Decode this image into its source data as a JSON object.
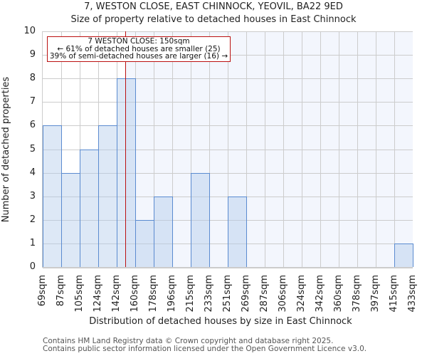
{
  "header": {
    "title": "7, WESTON CLOSE, EAST CHINNOCK, YEOVIL, BA22 9ED",
    "subtitle": "Size of property relative to detached houses in East Chinnock"
  },
  "annotation": {
    "line1": "7 WESTON CLOSE: 150sqm",
    "line2": "← 61% of detached houses are smaller (25)",
    "line3": "39% of semi-detached houses are larger (16) →"
  },
  "axes": {
    "xlabel": "Distribution of detached houses by size in East Chinnock",
    "ylabel": "Number of detached properties",
    "yticks": [
      "0",
      "1",
      "2",
      "3",
      "4",
      "5",
      "6",
      "7",
      "8",
      "9",
      "10"
    ]
  },
  "footer": {
    "line1": "Contains HM Land Registry data © Crown copyright and database right 2025.",
    "line2": "Contains public sector information licensed under the Open Government Licence v3.0."
  },
  "colors": {
    "bar_fill": "#dce6f4",
    "bar_edge": "#5b8bd0",
    "marker": "#bb1111",
    "highlight_bg": "#f3f6fd",
    "grid": "#cccccc"
  },
  "chart_data": {
    "type": "bar",
    "title": "7, WESTON CLOSE, EAST CHINNOCK, YEOVIL, BA22 9ED",
    "subtitle": "Size of property relative to detached houses in East Chinnock",
    "xlabel": "Distribution of detached houses by size in East Chinnock",
    "ylabel": "Number of detached properties",
    "bin_edges": [
      "69sqm",
      "87sqm",
      "105sqm",
      "124sqm",
      "142sqm",
      "160sqm",
      "178sqm",
      "196sqm",
      "215sqm",
      "233sqm",
      "251sqm",
      "269sqm",
      "287sqm",
      "306sqm",
      "324sqm",
      "342sqm",
      "360sqm",
      "378sqm",
      "397sqm",
      "415sqm",
      "433sqm"
    ],
    "categories": [
      "69-87sqm",
      "87-105sqm",
      "105-124sqm",
      "124-142sqm",
      "142-160sqm",
      "160-178sqm",
      "178-196sqm",
      "196-215sqm",
      "215-233sqm",
      "233-251sqm",
      "251-269sqm",
      "269-287sqm",
      "287-306sqm",
      "306-324sqm",
      "324-342sqm",
      "342-360sqm",
      "360-378sqm",
      "378-397sqm",
      "397-415sqm",
      "415-433sqm"
    ],
    "values": [
      6,
      4,
      5,
      6,
      8,
      2,
      3,
      0,
      4,
      0,
      3,
      0,
      0,
      0,
      0,
      0,
      0,
      0,
      0,
      1
    ],
    "ylim": [
      0,
      10
    ],
    "grid": true,
    "marker": {
      "value_sqm": 150,
      "label": "7 WESTON CLOSE: 150sqm"
    },
    "annotations": [
      "7 WESTON CLOSE: 150sqm",
      "← 61% of detached houses are smaller (25)",
      "39% of semi-detached houses are larger (16) →"
    ]
  }
}
